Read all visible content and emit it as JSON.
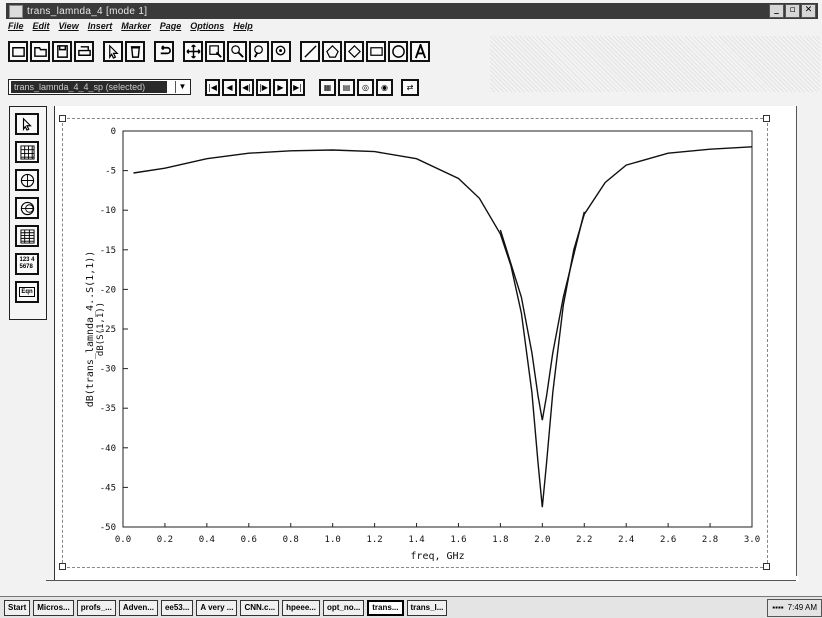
{
  "window": {
    "title": "trans_lamnda_4 [mode 1]"
  },
  "menu": [
    "File",
    "Edit",
    "View",
    "Insert",
    "Marker",
    "Page",
    "Options",
    "Help"
  ],
  "toolbar": {
    "buttons": [
      "new-page-icon",
      "open-icon",
      "save-icon",
      "print-icon",
      "pointer-icon",
      "delete-icon",
      "undo-icon",
      "pan-icon",
      "zoom-box-icon",
      "zoom-in-icon",
      "zoom-out-icon",
      "zoom-icon",
      "line-icon",
      "polyline-icon",
      "polygon-icon",
      "rectangle-icon",
      "ellipse-icon",
      "text-icon"
    ]
  },
  "dataset": {
    "selected": "trans_lamnda_4_4_sp (selected)"
  },
  "playback_buttons": [
    "first-icon",
    "prev-icon",
    "step-back-icon",
    "step-fwd-icon",
    "next-icon",
    "last-icon"
  ],
  "side_tools": [
    "pointer-icon",
    "rectangular-plot-icon",
    "polar-icon",
    "smith-chart-icon",
    "stack-icon",
    "list-icon",
    "equation-icon"
  ],
  "side_labels": {
    "list": "123 4\n5678",
    "eqn": "Eqn"
  },
  "chart_data": {
    "type": "line",
    "xlabel": "freq, GHz",
    "ylabel": "dB(trans_lamnda_4..S(1,1))",
    "ylabel2": "dB(S(1,1))",
    "xlim": [
      0.0,
      3.0
    ],
    "ylim": [
      -50,
      0
    ],
    "xticks": [
      "0.0",
      "0.2",
      "0.4",
      "0.6",
      "0.8",
      "1.0",
      "1.2",
      "1.4",
      "1.6",
      "1.8",
      "2.0",
      "2.2",
      "2.4",
      "2.6",
      "2.8",
      "3.0"
    ],
    "yticks": [
      "0",
      "-5",
      "-10",
      "-15",
      "-20",
      "-25",
      "-30",
      "-35",
      "-40",
      "-45",
      "-50"
    ],
    "series": [
      {
        "x": [
          0.05,
          0.2,
          0.4,
          0.6,
          0.8,
          1.0,
          1.2,
          1.4,
          1.6,
          1.7,
          1.8,
          1.85,
          1.9,
          1.95,
          1.98,
          2.0,
          2.02,
          2.05,
          2.1,
          2.15,
          2.2,
          2.3,
          2.4,
          2.6,
          2.8,
          3.0
        ],
        "y": [
          -5.3,
          -4.7,
          -3.5,
          -2.8,
          -2.5,
          -2.4,
          -2.6,
          -3.5,
          -6.0,
          -8.5,
          -13.0,
          -17.0,
          -23.0,
          -33.0,
          -42.0,
          -47.5,
          -42.0,
          -33.0,
          -22.0,
          -15.0,
          -10.5,
          -6.5,
          -4.3,
          -2.8,
          -2.3,
          -2.0
        ],
        "color": "#111111"
      },
      {
        "x": [
          1.8,
          1.9,
          1.95,
          1.98,
          2.0,
          2.02,
          2.05,
          2.1,
          2.2
        ],
        "y": [
          -12.5,
          -21.0,
          -28.0,
          -33.5,
          -36.5,
          -33.5,
          -28.0,
          -21.0,
          -10.2
        ],
        "color": "#111111"
      }
    ]
  },
  "taskbar": {
    "items": [
      "Start",
      "Micros...",
      "profs_...",
      "Adven...",
      "ee53...",
      "A very ...",
      "CNN.c...",
      "hpeee...",
      "opt_no...",
      "trans...",
      "trans_l..."
    ],
    "active_index": 9,
    "clock": "7:49 AM"
  }
}
